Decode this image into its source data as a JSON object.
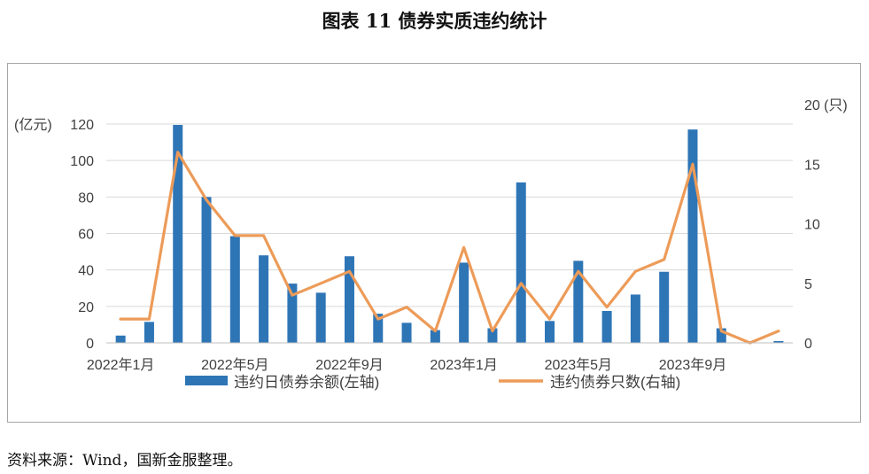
{
  "figure": {
    "title": "图表 11  债券实质违约统计"
  },
  "source": "资料来源：Wind，国新金服整理。",
  "chart_data": {
    "type": "bar+line",
    "left_axis": {
      "label": "(亿元)",
      "ylim": [
        0,
        120
      ],
      "ticks": [
        0,
        20,
        40,
        60,
        80,
        100,
        120
      ]
    },
    "right_axis": {
      "label": "(只)",
      "ylim": [
        0,
        20
      ],
      "ticks": [
        0,
        5,
        10,
        15,
        20
      ]
    },
    "x_tick_labels": [
      "2022年1月",
      "2022年5月",
      "2022年9月",
      "2023年1月",
      "2023年5月",
      "2023年9月"
    ],
    "x_tick_indices": [
      0,
      4,
      8,
      12,
      16,
      20
    ],
    "periods": 24,
    "series": [
      {
        "name": "违约日债券余额(左轴)",
        "type": "bar",
        "axis": "left",
        "color": "#2e75b6",
        "values": [
          4,
          11.5,
          119.5,
          80,
          58.5,
          48,
          32.5,
          27.5,
          47.5,
          16,
          11,
          7,
          44,
          8,
          88,
          12,
          45,
          17.5,
          26.5,
          39,
          117,
          8,
          0,
          1
        ]
      },
      {
        "name": "违约债券只数(右轴)",
        "type": "line",
        "axis": "right",
        "color": "#ed9b58",
        "values": [
          2,
          2,
          16,
          12,
          9,
          9,
          4,
          5,
          6,
          2,
          3,
          1,
          8,
          1,
          5,
          2,
          6,
          3,
          6,
          7,
          15,
          1,
          0,
          1
        ]
      }
    ],
    "legend_position": "bottom",
    "grid": true
  }
}
